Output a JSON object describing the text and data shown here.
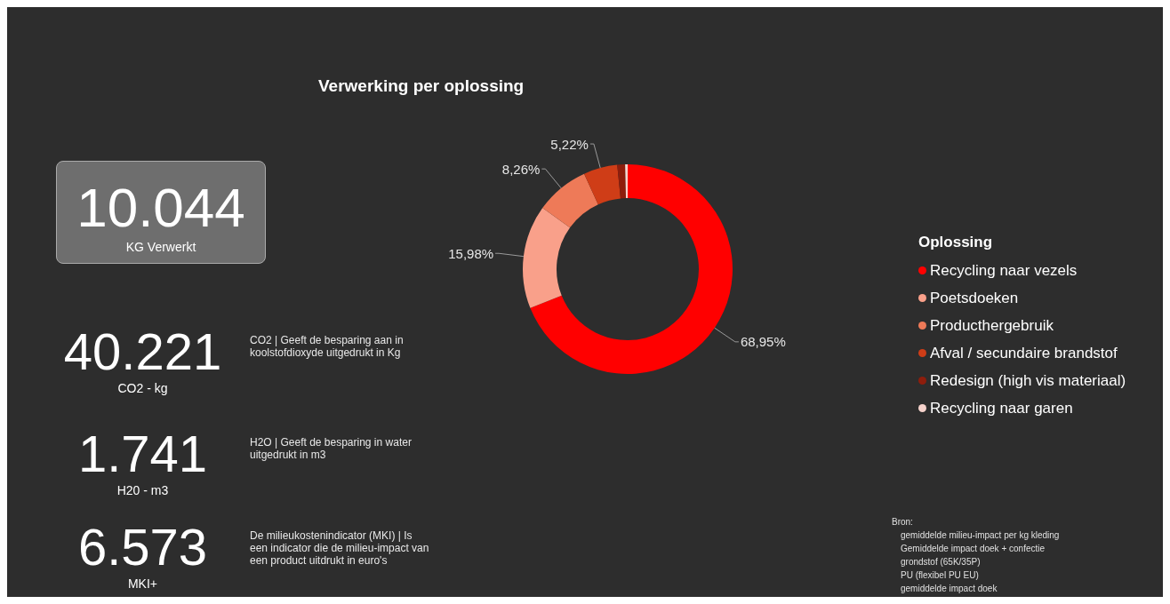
{
  "chart_data": [
    {
      "type": "donut",
      "title": "Verwerking per oplossing",
      "legend_title": "Oplossing",
      "legend": "right",
      "categories": [
        "Recycling naar vezels",
        "Poetsdoeken",
        "Producthergebruik",
        "Afval / secundaire brandstof",
        "Redesign (high vis materiaal)",
        "Recycling naar garen"
      ],
      "values": [
        68.95,
        15.98,
        8.26,
        5.22,
        1.2,
        0.39
      ],
      "colors": [
        "#ff0000",
        "#f9a08a",
        "#ee7a58",
        "#cf3d17",
        "#8e1d0c",
        "#f6d3cc"
      ],
      "value_labels": [
        "68,95%",
        "15,98%",
        "8,26%",
        "5,22%",
        null,
        null
      ],
      "annotations": [
        "Bron:",
        "gemiddelde milieu-impact per kg kleding",
        "Gemiddelde impact doek + confectie",
        "grondstof (65K/35P)",
        "PU (flexibel PU EU)",
        "gemiddelde impact doek"
      ]
    },
    {
      "type": "other",
      "annotations": [
        "10.044",
        "KG Verwerkt",
        "40.221",
        "CO2 - kg",
        "CO2 | Geeft de besparing aan in koolstofdioxyde uitgedrukt in Kg",
        "1.741",
        "H20 - m3",
        "H2O | Geeft de besparing in water uitgedrukt in m3",
        "6.573",
        "MKI+",
        "De milieukostenindicator (MKI) | Is een indicator die de milieu-impact van een product uitdrukt in euro's"
      ]
    }
  ]
}
